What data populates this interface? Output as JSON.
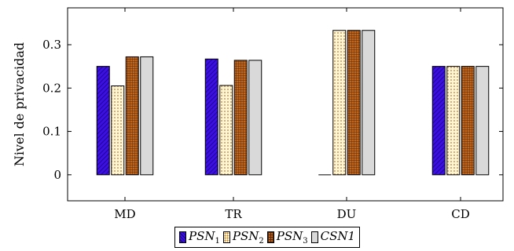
{
  "chart_data": {
    "type": "bar",
    "title": "",
    "xlabel": "",
    "ylabel": "Nivel de privacidad",
    "categories": [
      "MD",
      "TR",
      "DU",
      "CD"
    ],
    "ylim": [
      -0.06,
      0.385
    ],
    "yticks": [
      "0",
      "0.1",
      "0.2",
      "0.3"
    ],
    "grid": false,
    "legend_position": "bottom-center",
    "series": [
      {
        "name": "PSN",
        "subscript": "1",
        "values": [
          0.25,
          0.267,
          0.0,
          0.25
        ],
        "color": "#3a10e5",
        "pattern": "diagonal-lines"
      },
      {
        "name": "PSN",
        "subscript": "2",
        "values": [
          0.205,
          0.206,
          0.333,
          0.25
        ],
        "color": "#fff3d4",
        "pattern": "dots"
      },
      {
        "name": "PSN",
        "subscript": "3",
        "values": [
          0.272,
          0.264,
          0.333,
          0.25
        ],
        "color": "#c0661e",
        "pattern": "grid"
      },
      {
        "name": "CSN1",
        "subscript": "",
        "values": [
          0.272,
          0.264,
          0.333,
          0.25
        ],
        "color": "#d9d9d9",
        "pattern": "solid"
      }
    ]
  }
}
